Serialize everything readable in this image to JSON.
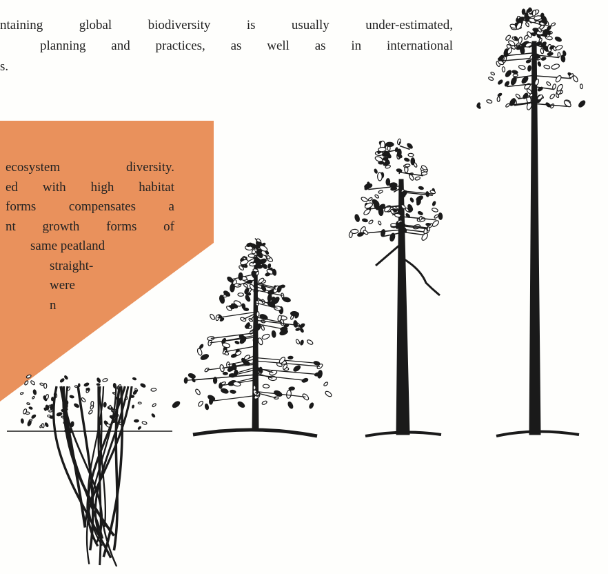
{
  "top_text": {
    "lines": [
      "ntaining global biodiversity is usually under-estimated,",
      "planning and practices, as well as in international",
      "s."
    ]
  },
  "box_text": {
    "lines": [
      "ecosystem diversity.",
      "ed with high habitat",
      "forms compensates a",
      "nt growth forms of",
      "same peatland",
      "straight-",
      "were",
      "n"
    ]
  }
}
